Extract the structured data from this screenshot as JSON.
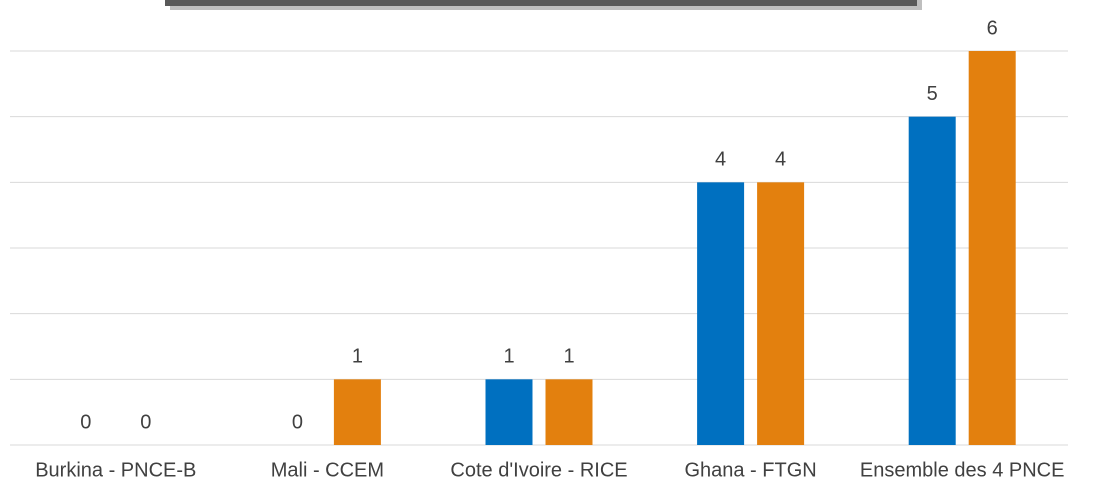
{
  "chart_data": {
    "type": "bar",
    "categories": [
      "Burkina - PNCE-B",
      "Mali - CCEM",
      "Cote d'Ivoire - RICE",
      "Ghana - FTGN",
      "Ensemble des 4 PNCE"
    ],
    "series": [
      {
        "color": "#0070c0",
        "values": [
          0,
          0,
          1,
          4,
          5
        ]
      },
      {
        "color": "#e3800e",
        "values": [
          0,
          1,
          1,
          4,
          6
        ]
      }
    ],
    "ylim": [
      0,
      6
    ],
    "yticks": [
      0,
      1,
      2,
      3,
      4,
      5,
      6
    ],
    "grid": true
  }
}
